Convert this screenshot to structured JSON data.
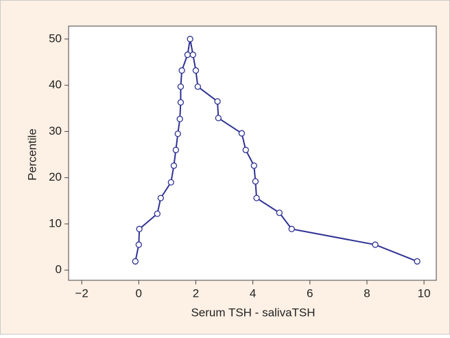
{
  "chart_data": {
    "type": "line",
    "xlabel": "Serum TSH - salivaTSH",
    "ylabel": "Percentile",
    "x": [
      -0.12,
      0,
      0.02,
      0.65,
      0.77,
      1.13,
      1.23,
      1.3,
      1.37,
      1.44,
      1.47,
      1.47,
      1.51,
      1.71,
      1.8,
      1.9,
      2.0,
      2.07,
      2.76,
      2.79,
      3.61,
      3.75,
      4.04,
      4.09,
      4.13,
      4.93,
      5.36,
      8.29,
      9.76
    ],
    "values": [
      1.9,
      5.5,
      8.9,
      12.2,
      15.6,
      19.0,
      22.6,
      26.0,
      29.5,
      32.7,
      36.3,
      39.7,
      43.2,
      46.6,
      50,
      46.6,
      43.2,
      39.7,
      36.5,
      32.9,
      29.6,
      26.0,
      22.6,
      19.2,
      15.6,
      12.4,
      8.9,
      5.5,
      1.9
    ],
    "color": "#2e3192",
    "xlim": [
      -2.46,
      10.43
    ],
    "ylim": [
      -2.2,
      52.8
    ],
    "xticks": [
      {
        "value": -2,
        "label": "−2"
      },
      0,
      2,
      4,
      6,
      8,
      10
    ],
    "yticks": [
      0,
      10,
      20,
      30,
      40,
      50
    ],
    "grid": false
  }
}
